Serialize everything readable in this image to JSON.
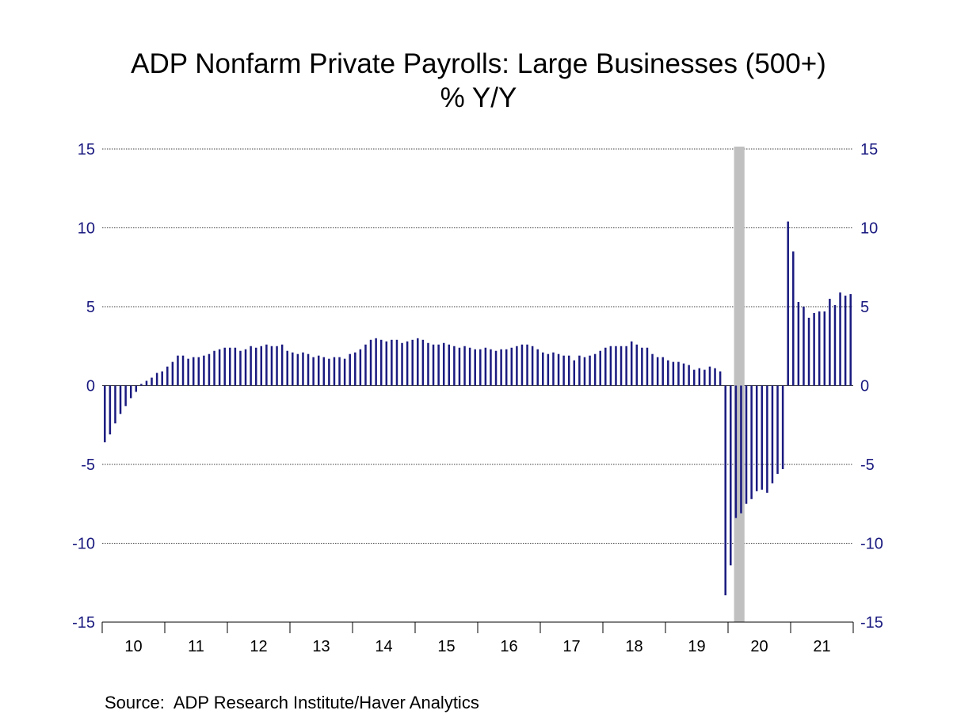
{
  "chart_data": {
    "type": "bar",
    "title": "ADP Nonfarm Private Payrolls: Large Businesses (500+)",
    "subtitle": "% Y/Y",
    "x_start": "2010-01",
    "frequency": "monthly",
    "ylim": [
      -15,
      15
    ],
    "yticks": [
      15,
      10,
      5,
      0,
      -5,
      -10,
      -15
    ],
    "xticks": [
      "10",
      "11",
      "12",
      "13",
      "14",
      "15",
      "16",
      "17",
      "18",
      "19",
      "20",
      "21"
    ],
    "grid": true,
    "recession_shading": {
      "start": "2020-02",
      "end": "2020-04"
    },
    "colors": {
      "bars": "#1a1a80",
      "recession": "#c0c0c0",
      "axis_labels": "#1a1a80"
    },
    "values": [
      -3.6,
      -3.1,
      -2.4,
      -1.8,
      -1.3,
      -0.8,
      -0.4,
      0.1,
      0.3,
      0.5,
      0.8,
      0.9,
      1.2,
      1.5,
      1.9,
      1.9,
      1.7,
      1.8,
      1.8,
      1.9,
      2.0,
      2.2,
      2.3,
      2.4,
      2.4,
      2.4,
      2.2,
      2.3,
      2.5,
      2.4,
      2.5,
      2.6,
      2.5,
      2.5,
      2.6,
      2.2,
      2.1,
      2.0,
      2.1,
      2.0,
      1.8,
      1.9,
      1.8,
      1.7,
      1.8,
      1.8,
      1.7,
      2.0,
      2.1,
      2.3,
      2.6,
      2.9,
      3.0,
      2.9,
      2.8,
      2.9,
      2.9,
      2.7,
      2.8,
      2.9,
      3.0,
      2.9,
      2.7,
      2.6,
      2.6,
      2.7,
      2.6,
      2.5,
      2.4,
      2.5,
      2.4,
      2.3,
      2.3,
      2.4,
      2.3,
      2.2,
      2.3,
      2.3,
      2.4,
      2.5,
      2.6,
      2.6,
      2.5,
      2.3,
      2.1,
      2.0,
      2.1,
      2.0,
      1.9,
      1.9,
      1.6,
      1.9,
      1.8,
      1.9,
      2.0,
      2.2,
      2.4,
      2.5,
      2.5,
      2.5,
      2.5,
      2.8,
      2.6,
      2.4,
      2.4,
      2.0,
      1.8,
      1.8,
      1.6,
      1.5,
      1.5,
      1.4,
      1.3,
      1.0,
      1.1,
      1.0,
      1.2,
      1.1,
      0.9,
      -13.3,
      -11.4,
      -8.4,
      -8.1,
      -7.5,
      -7.2,
      -6.7,
      -6.6,
      -6.8,
      -6.2,
      -5.6,
      -5.3,
      10.4,
      8.5,
      5.3,
      5.0,
      4.3,
      4.6,
      4.7,
      4.7,
      5.5,
      5.1,
      5.9,
      5.7,
      5.8
    ]
  },
  "source": "Source:  ADP Research Institute/Haver Analytics"
}
